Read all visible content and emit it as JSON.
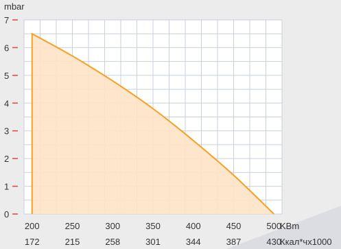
{
  "chart_data": {
    "type": "area",
    "y_unit": "mbar",
    "x_unit_primary": "KBm",
    "x_unit_secondary": "Ккал*чх1000",
    "x_ticks_primary": [
      "200",
      "250",
      "300",
      "350",
      "400",
      "450",
      "500"
    ],
    "x_ticks_secondary": [
      "172",
      "215",
      "258",
      "301",
      "344",
      "387",
      "430"
    ],
    "y_ticks": [
      "0",
      "1",
      "2",
      "3",
      "4",
      "5",
      "6",
      "7"
    ],
    "xlim": [
      190,
      510
    ],
    "ylim": [
      0,
      7
    ],
    "grid": true,
    "series": [
      {
        "x": [
          200,
          250,
          300,
          350,
          400,
          450,
          500
        ],
        "values": [
          6.5,
          5.7,
          4.8,
          3.8,
          2.65,
          1.4,
          0
        ]
      }
    ],
    "colors": {
      "line": "#f5a020",
      "fill": "#fde3c6",
      "grid": "#c8d0dc",
      "axis_tick": "#e8453c",
      "background": "#ececec",
      "plot_background": "#ffffff",
      "decor_shape": "#dcdde2"
    }
  }
}
